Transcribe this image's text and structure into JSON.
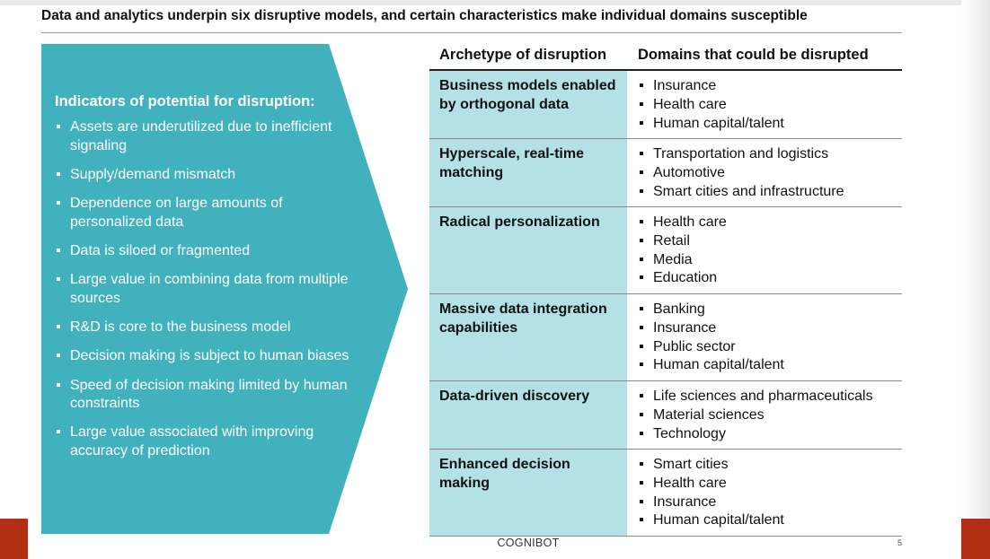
{
  "slide": {
    "title": "Data and analytics underpin six disruptive models, and certain characteristics make individual domains susceptible",
    "footer_label": "COGNIBOT",
    "page_number": "5"
  },
  "panel": {
    "heading": "Indicators of potential for disruption:",
    "bullet": "▪",
    "items": [
      "Assets are underutilized due to inefficient signaling",
      "Supply/demand mismatch",
      "Dependence on large amounts of personalized data",
      "Data is siloed or fragmented",
      "Large value in combining data from multiple sources",
      "R&D is core to the business model",
      "Decision making is subject to human biases",
      "Speed of decision making limited by human constraints",
      "Large value associated with improving accuracy of prediction"
    ]
  },
  "table": {
    "col_archetype": "Archetype of disruption",
    "col_domains": "Domains that could be disrupted",
    "bullet": "▪",
    "rows": [
      {
        "archetype": "Business models enabled by orthogonal data",
        "domains": [
          "Insurance",
          "Health care",
          "Human capital/talent"
        ]
      },
      {
        "archetype": "Hyperscale, real-time matching",
        "domains": [
          "Transportation and logistics",
          "Automotive",
          "Smart cities and infrastructure"
        ]
      },
      {
        "archetype": "Radical personalization",
        "domains": [
          "Health care",
          "Retail",
          "Media",
          "Education"
        ]
      },
      {
        "archetype": "Massive data integration capabilities",
        "domains": [
          "Banking",
          "Insurance",
          "Public sector",
          "Human capital/talent"
        ]
      },
      {
        "archetype": "Data-driven discovery",
        "domains": [
          "Life sciences and pharmaceuticals",
          "Material sciences",
          "Technology"
        ]
      },
      {
        "archetype": "Enhanced decision making",
        "domains": [
          "Smart cities",
          "Health care",
          "Insurance",
          "Human capital/talent"
        ]
      }
    ]
  },
  "colors": {
    "panel_teal": "#41b2bd",
    "archetype_fill": "#b4e1e6",
    "accent_red": "#b22f14"
  }
}
